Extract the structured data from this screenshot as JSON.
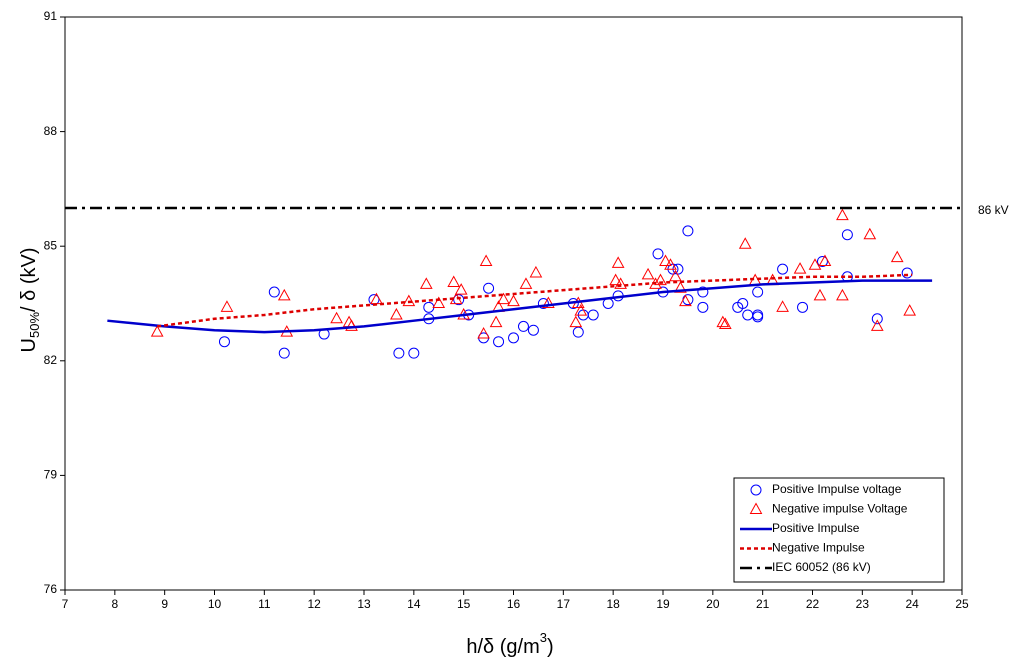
{
  "chart_data": {
    "type": "scatter",
    "x_label": [
      "h/δ (g/m",
      "3",
      ")"
    ],
    "y_label": [
      "U",
      "50%",
      "/ δ (kV)"
    ],
    "xlim": [
      7,
      25
    ],
    "xticks": [
      7,
      8,
      9,
      10,
      11,
      12,
      13,
      14,
      15,
      16,
      17,
      18,
      19,
      20,
      21,
      22,
      23,
      24,
      25
    ],
    "ylim": [
      76,
      91
    ],
    "yticks": [
      76,
      79,
      82,
      85,
      88,
      91
    ],
    "legend": "bottom-right",
    "annotations": [
      {
        "text": "86 kV",
        "y": 86
      }
    ],
    "series": [
      {
        "name": "Positive Impulse voltage",
        "mode": "markers",
        "marker": "circle",
        "color": "#0000ff",
        "x": [
          10.2,
          11.2,
          11.4,
          12.2,
          13.2,
          13.7,
          14.0,
          14.3,
          14.3,
          14.9,
          15.1,
          15.4,
          15.5,
          15.7,
          16.0,
          16.2,
          16.4,
          16.6,
          17.3,
          17.2,
          17.4,
          17.6,
          17.9,
          18.1,
          18.9,
          19.0,
          19.2,
          19.3,
          19.5,
          19.5,
          19.8,
          19.8,
          20.5,
          20.6,
          20.7,
          20.9,
          20.9,
          20.9,
          21.4,
          21.8,
          22.2,
          22.7,
          22.7,
          23.3,
          23.9
        ],
        "values": [
          82.5,
          83.8,
          82.2,
          82.7,
          83.6,
          82.2,
          82.2,
          83.4,
          83.1,
          83.6,
          83.2,
          82.6,
          83.9,
          82.5,
          82.6,
          82.9,
          82.8,
          83.5,
          82.75,
          83.5,
          83.2,
          83.2,
          83.5,
          83.7,
          84.8,
          83.8,
          84.4,
          84.4,
          83.6,
          85.4,
          83.4,
          83.8,
          83.4,
          83.5,
          83.2,
          83.2,
          83.15,
          83.8,
          84.4,
          83.4,
          84.6,
          85.3,
          84.2,
          83.1,
          84.3
        ]
      },
      {
        "name": "Negative impulse Voltage",
        "mode": "markers",
        "marker": "triangle",
        "color": "#ff0000",
        "x": [
          8.85,
          10.25,
          11.4,
          11.45,
          12.45,
          12.7,
          12.75,
          13.25,
          13.65,
          13.9,
          14.25,
          14.5,
          14.8,
          14.85,
          14.95,
          15.0,
          15.45,
          15.4,
          15.65,
          15.7,
          15.8,
          16.0,
          16.25,
          16.45,
          16.7,
          17.25,
          17.3,
          17.35,
          18.05,
          18.1,
          18.15,
          18.7,
          18.85,
          18.95,
          19.05,
          19.15,
          19.25,
          19.35,
          19.45,
          20.2,
          20.25,
          20.65,
          20.85,
          21.2,
          21.4,
          21.75,
          22.05,
          22.15,
          22.25,
          22.6,
          22.6,
          23.15,
          23.3,
          23.7,
          23.95
        ],
        "values": [
          82.75,
          83.4,
          83.7,
          82.75,
          83.1,
          83.0,
          82.9,
          83.6,
          83.2,
          83.55,
          84.0,
          83.5,
          84.05,
          83.6,
          83.85,
          83.2,
          84.6,
          82.7,
          83.0,
          83.4,
          83.6,
          83.55,
          84.0,
          84.3,
          83.5,
          83.0,
          83.5,
          83.3,
          84.1,
          84.55,
          84.0,
          84.25,
          84.0,
          84.1,
          84.6,
          84.5,
          84.2,
          83.9,
          83.55,
          83.0,
          82.95,
          85.05,
          84.1,
          84.1,
          83.4,
          84.4,
          84.5,
          83.7,
          84.6,
          85.8,
          83.7,
          85.3,
          82.9,
          84.7,
          83.3
        ]
      },
      {
        "name": "Positive Impulse",
        "mode": "line",
        "dash": "solid",
        "color": "#0000cc",
        "x": [
          7.85,
          9,
          10,
          11,
          12,
          13,
          14,
          15,
          16,
          17,
          18,
          19,
          20,
          21,
          22,
          23,
          24.4
        ],
        "values": [
          83.05,
          82.9,
          82.8,
          82.75,
          82.8,
          82.9,
          83.05,
          83.2,
          83.35,
          83.5,
          83.65,
          83.8,
          83.9,
          84.0,
          84.05,
          84.1,
          84.1
        ]
      },
      {
        "name": "Negative Impulse",
        "mode": "line",
        "dash": "dot",
        "color": "#dd0000",
        "x": [
          8.85,
          10,
          11,
          12,
          13,
          14,
          15,
          16,
          17,
          18,
          19,
          20,
          21,
          22,
          23,
          24
        ],
        "values": [
          82.9,
          83.1,
          83.2,
          83.35,
          83.45,
          83.55,
          83.65,
          83.75,
          83.85,
          83.95,
          84.05,
          84.1,
          84.15,
          84.2,
          84.2,
          84.25
        ]
      },
      {
        "name": "IEC 60052 (86 kV)",
        "mode": "line",
        "dash": "dashdot",
        "color": "#000000",
        "x": [
          7,
          25
        ],
        "values": [
          86,
          86
        ]
      }
    ]
  }
}
